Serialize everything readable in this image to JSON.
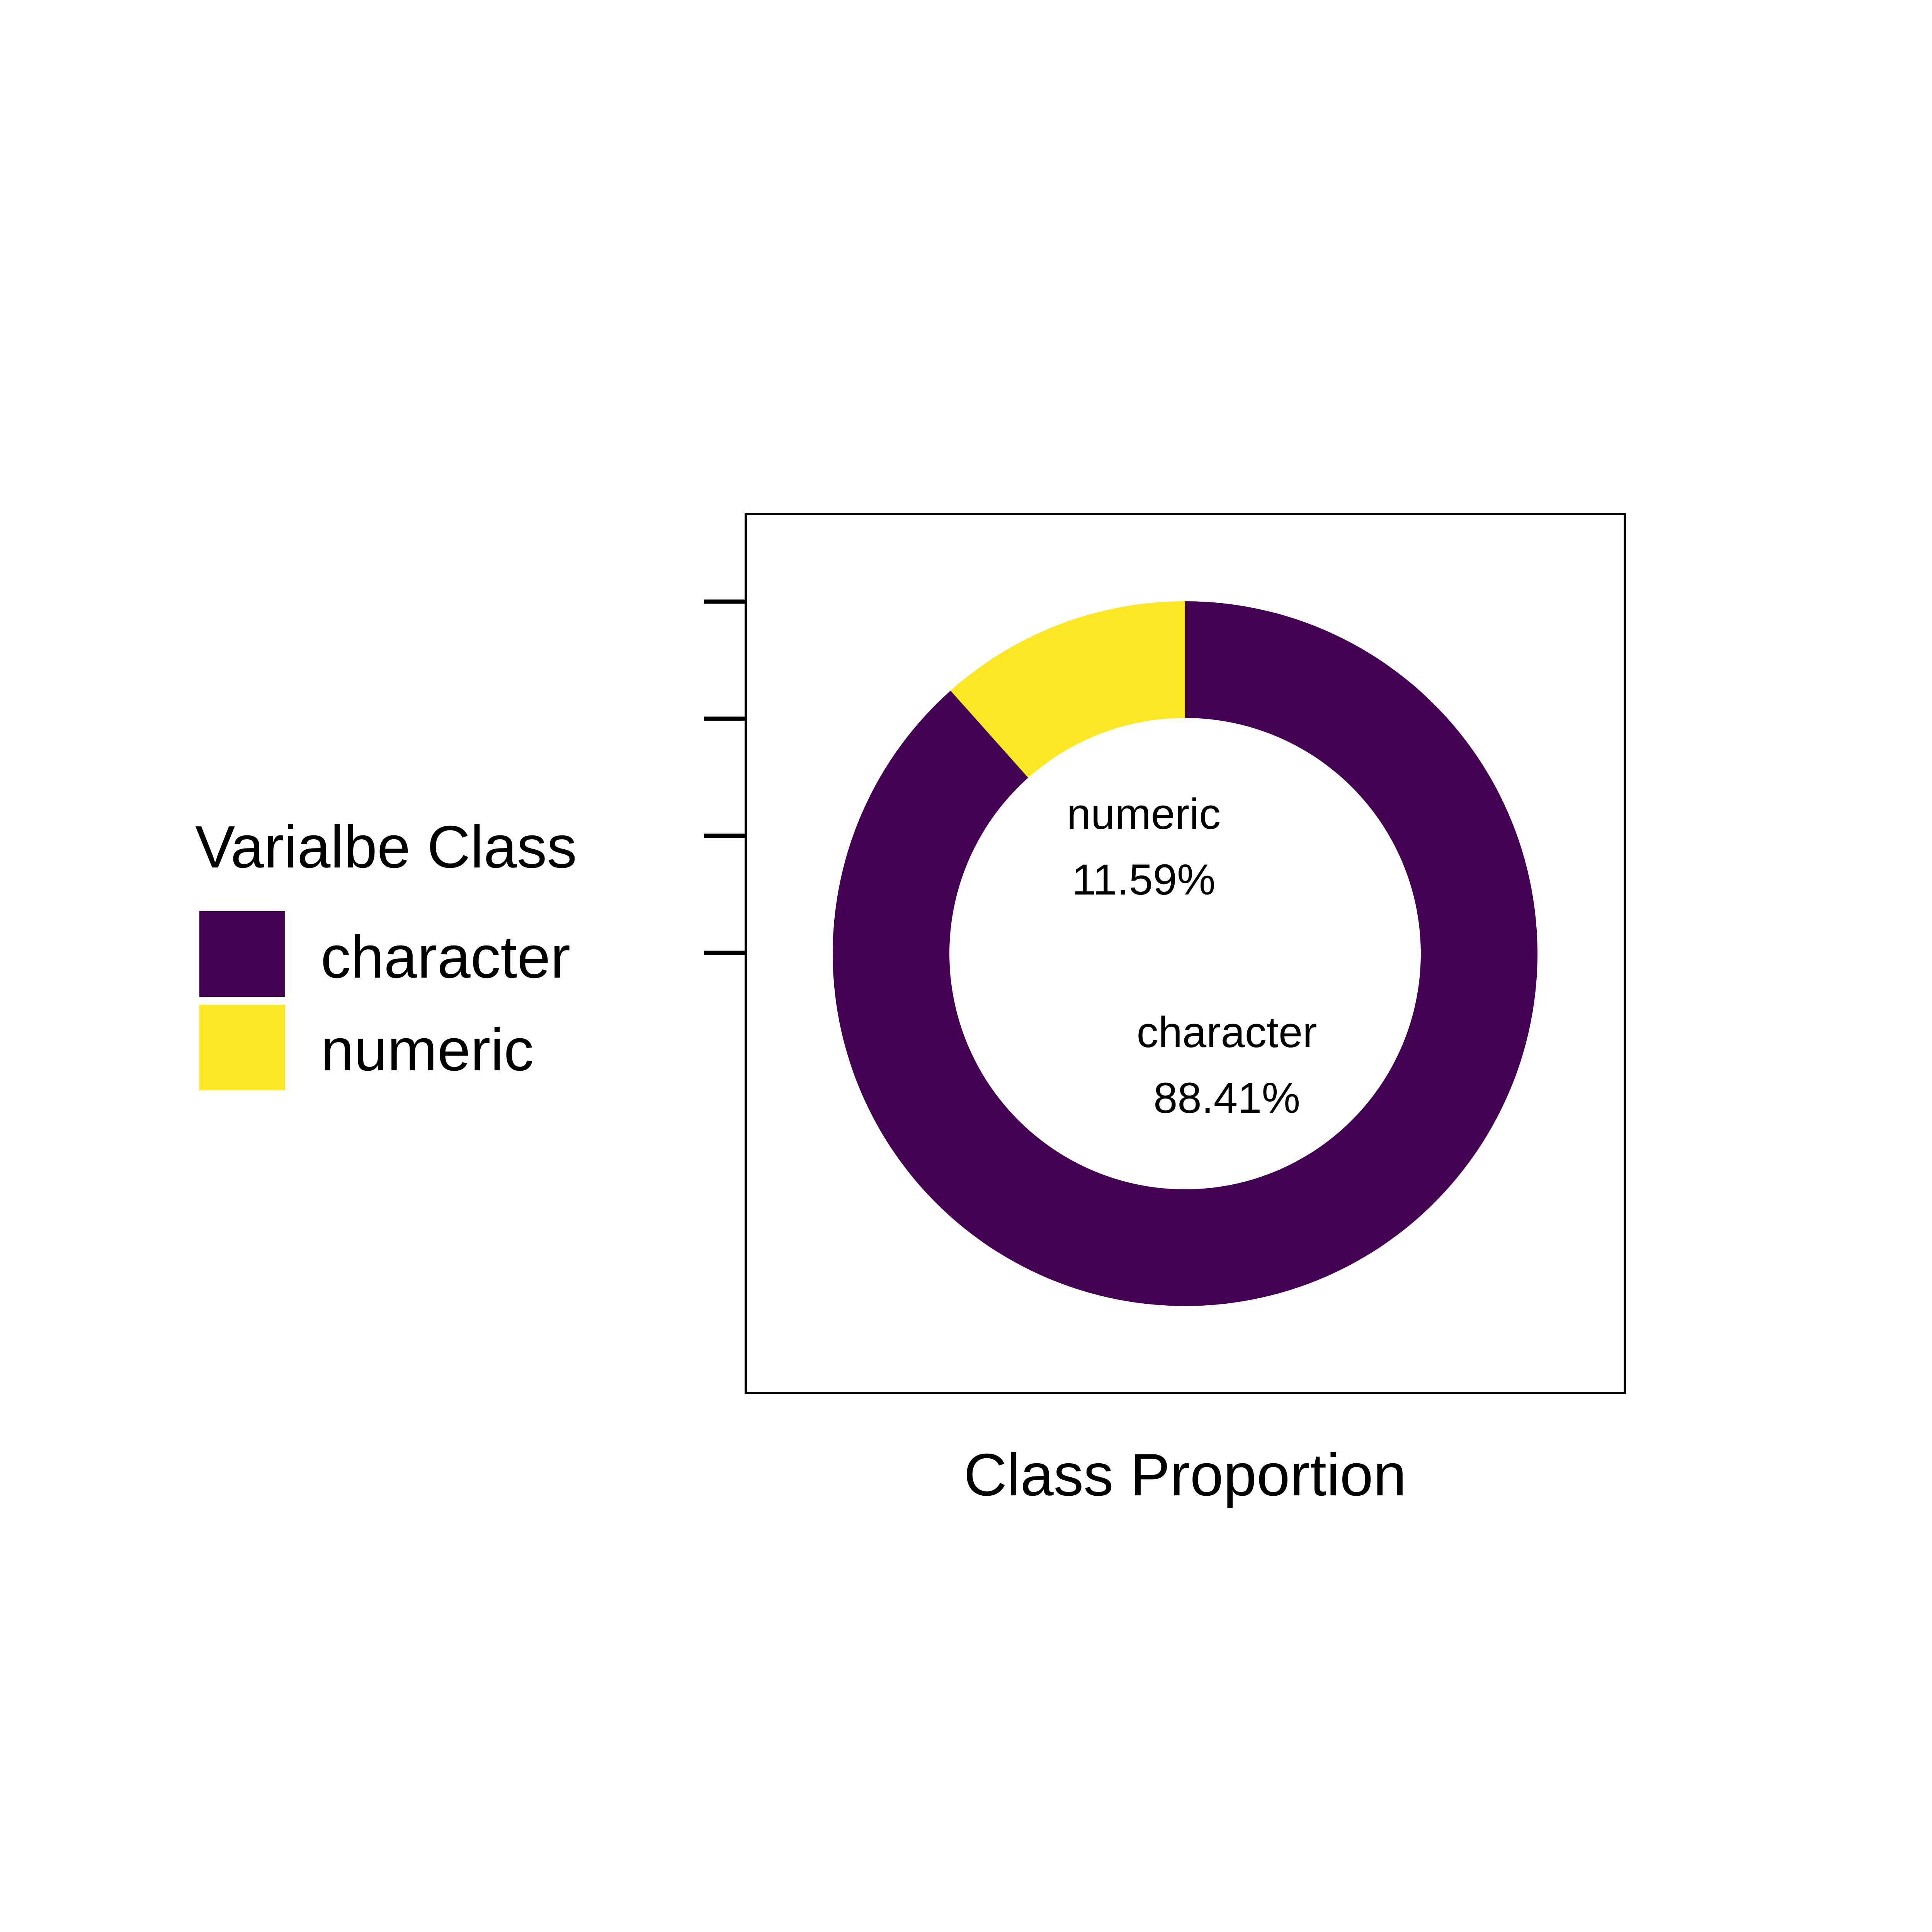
{
  "chart_data": {
    "type": "pie",
    "donut": true,
    "title": "",
    "xlabel": "Class Proportion",
    "ylabel": "",
    "legend": {
      "title": "Varialbe Class",
      "position": "left"
    },
    "slices": [
      {
        "name": "character",
        "value": 88.41,
        "label": "88.41%",
        "color": "#440154"
      },
      {
        "name": "numeric",
        "value": 11.59,
        "label": "11.59%",
        "color": "#FDE725"
      }
    ],
    "start": "12 o'clock",
    "direction": "clockwise",
    "y_ticks_count": 4,
    "y_tick_labels_shown": false,
    "grid": false,
    "panel_border": true
  }
}
